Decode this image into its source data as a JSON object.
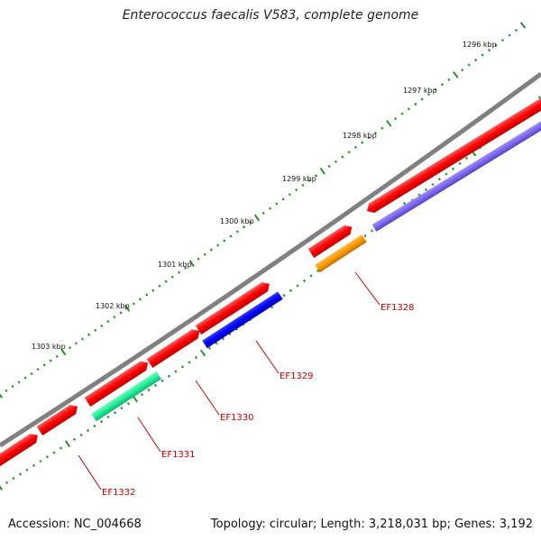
{
  "title": "Enterococcus faecalis V583, complete genome",
  "footer": {
    "accession": "Accession: NC_004668",
    "topology": "Topology: circular; Length: 3,218,031 bp; Genes: 3,192"
  },
  "kbp_labels": [
    "1296 kbp",
    "1297 kbp",
    "1298 kbp",
    "1299 kbp",
    "1300 kbp",
    "1301 kbp",
    "1302 kbp",
    "1303 kbp"
  ],
  "gene_labels": [
    "EF1328",
    "EF1329",
    "EF1330",
    "EF1331",
    "EF1332"
  ],
  "colors": {
    "backbone": "#808080",
    "gene_red": "#ff0000",
    "tick_green": "#1a8a1a",
    "label_red": "#cc0000",
    "EF1328": "#ff9900",
    "EF1329": "#0000ff",
    "EF1330": "#ff0000",
    "EF1331": "#22ee99",
    "EF1332": "#ff0000",
    "purple_feature": "#7b68ee"
  }
}
